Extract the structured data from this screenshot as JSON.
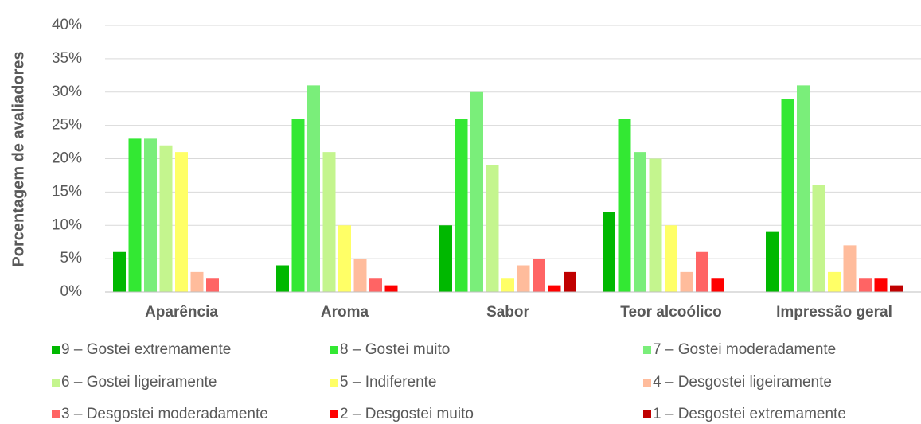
{
  "chart_data": {
    "type": "bar",
    "y_label": "Porcentagem de avaliadores",
    "categories": [
      "Aparência",
      "Aroma",
      "Sabor",
      "Teor alcoólico",
      "Impressão geral"
    ],
    "series": [
      {
        "name": "9 – Gostei extremamente",
        "color": "#00b800",
        "values": [
          6,
          4,
          10,
          12,
          9
        ]
      },
      {
        "name": "8 – Gostei muito",
        "color": "#33e833",
        "values": [
          23,
          26,
          26,
          26,
          29
        ]
      },
      {
        "name": "7 – Gostei moderadamente",
        "color": "#7aee7a",
        "values": [
          23,
          31,
          30,
          21,
          31
        ]
      },
      {
        "name": "6 – Gostei ligeiramente",
        "color": "#c4f58e",
        "values": [
          22,
          21,
          19,
          20,
          16
        ]
      },
      {
        "name": "5 – Indiferente",
        "color": "#ffff66",
        "values": [
          21,
          10,
          2,
          10,
          3
        ]
      },
      {
        "name": "4 – Desgostei ligeiramente",
        "color": "#ffbc9c",
        "values": [
          3,
          5,
          4,
          3,
          7
        ]
      },
      {
        "name": "3 – Desgostei moderadamente",
        "color": "#ff6464",
        "values": [
          2,
          2,
          5,
          6,
          2
        ]
      },
      {
        "name": "2 – Desgostei muito",
        "color": "#ff0000",
        "values": [
          0,
          1,
          1,
          2,
          2
        ]
      },
      {
        "name": "1 – Desgostei extremamente",
        "color": "#c00000",
        "values": [
          0,
          0,
          3,
          0,
          1
        ]
      }
    ],
    "ylim": [
      0,
      40
    ],
    "yticks": [
      {
        "value": 0,
        "label": "0%"
      },
      {
        "value": 5,
        "label": "5%"
      },
      {
        "value": 10,
        "label": "10%"
      },
      {
        "value": 15,
        "label": "15%"
      },
      {
        "value": 20,
        "label": "20%"
      },
      {
        "value": 25,
        "label": "25%"
      },
      {
        "value": 30,
        "label": "30%"
      },
      {
        "value": 35,
        "label": "35%"
      },
      {
        "value": 40,
        "label": "40%"
      }
    ],
    "grid": true,
    "legend": "bottom"
  }
}
